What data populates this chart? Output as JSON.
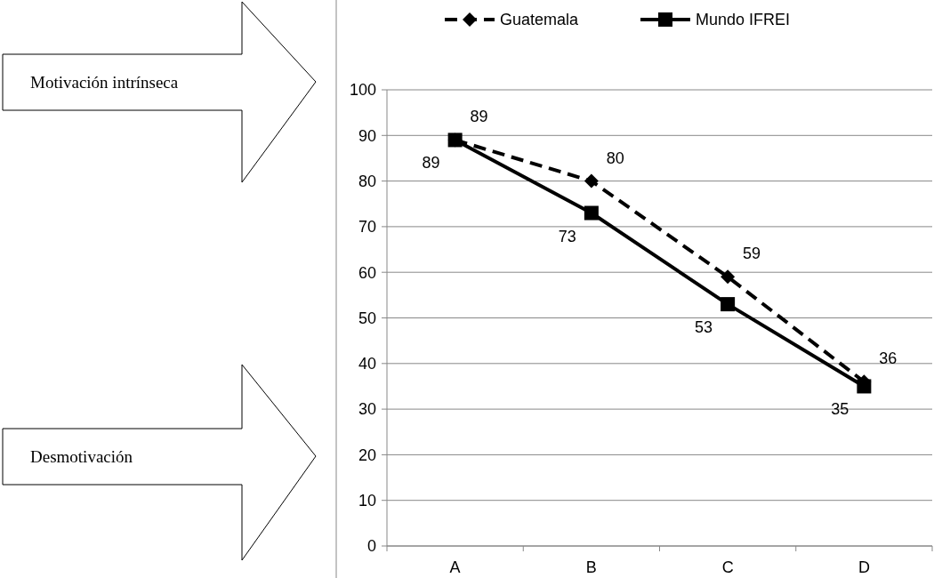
{
  "chart_data": {
    "type": "line",
    "categories": [
      "A",
      "B",
      "C",
      "D"
    ],
    "series": [
      {
        "name": "Guatemala",
        "color": "#000000",
        "values": [
          89,
          80,
          59,
          36
        ],
        "marker": "diamond",
        "line_style": "dashed"
      },
      {
        "name": "Mundo IFREI",
        "color": "#000000",
        "values": [
          89,
          73,
          53,
          35
        ],
        "marker": "square",
        "line_style": "solid"
      }
    ],
    "ylim": [
      0,
      100
    ],
    "yticks": [
      0,
      10,
      20,
      30,
      40,
      50,
      60,
      70,
      80,
      90,
      100
    ],
    "grid": "y",
    "legend": "top",
    "data_labels": true,
    "annotations": [
      "Motivación intrínseca",
      "Desmotivación"
    ]
  }
}
